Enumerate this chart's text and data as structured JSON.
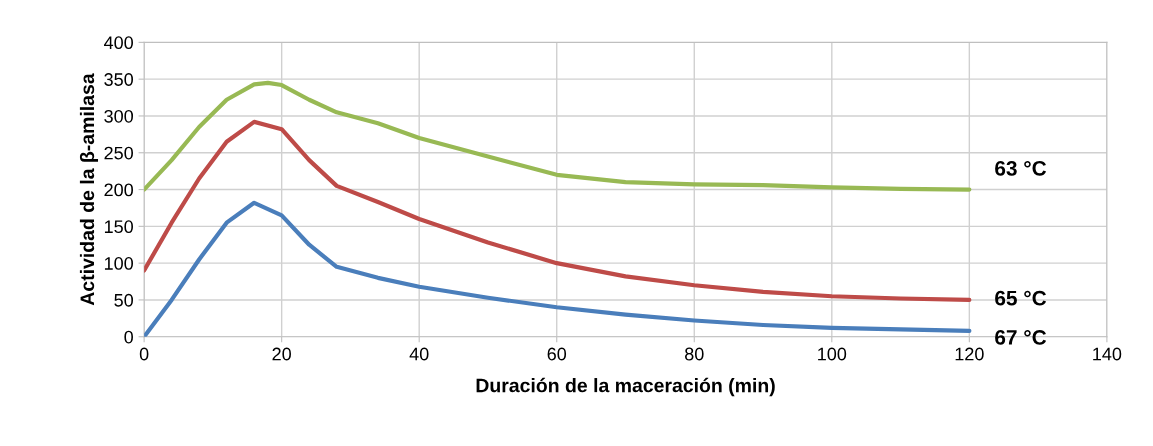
{
  "chart_data": {
    "type": "line",
    "xlabel": "Duración de la maceración (min)",
    "ylabel": "Actividad de la β-amilasa",
    "xlim": [
      0,
      140
    ],
    "xticks": [
      0,
      20,
      40,
      60,
      80,
      100,
      120,
      140
    ],
    "ylim": [
      0,
      400
    ],
    "yticks": [
      0,
      50,
      100,
      150,
      200,
      250,
      300,
      350,
      400
    ],
    "grid": true,
    "legend": false,
    "marker": "none",
    "line_style": "solid",
    "series": [
      {
        "name": "67 °C",
        "color": "#4a7ebb",
        "x": [
          0,
          4,
          8,
          12,
          16,
          20,
          24,
          28,
          34,
          40,
          50,
          60,
          70,
          80,
          90,
          100,
          110,
          120
        ],
        "values": [
          0,
          50,
          105,
          155,
          182,
          165,
          125,
          95,
          80,
          68,
          53,
          40,
          30,
          22,
          16,
          12,
          10,
          8
        ]
      },
      {
        "name": "65 °C",
        "color": "#be4b48",
        "x": [
          0,
          4,
          8,
          12,
          16,
          20,
          24,
          28,
          34,
          40,
          50,
          60,
          70,
          80,
          90,
          100,
          110,
          120
        ],
        "values": [
          90,
          155,
          215,
          265,
          292,
          282,
          240,
          205,
          183,
          160,
          128,
          100,
          82,
          70,
          61,
          55,
          52,
          50
        ]
      },
      {
        "name": "63 °C",
        "color": "#98b954",
        "x": [
          0,
          4,
          8,
          12,
          16,
          18,
          20,
          24,
          28,
          34,
          40,
          50,
          60,
          70,
          80,
          90,
          100,
          110,
          120
        ],
        "values": [
          200,
          240,
          285,
          322,
          343,
          345,
          342,
          322,
          305,
          290,
          270,
          245,
          220,
          210,
          207,
          206,
          203,
          201,
          200
        ]
      }
    ]
  }
}
